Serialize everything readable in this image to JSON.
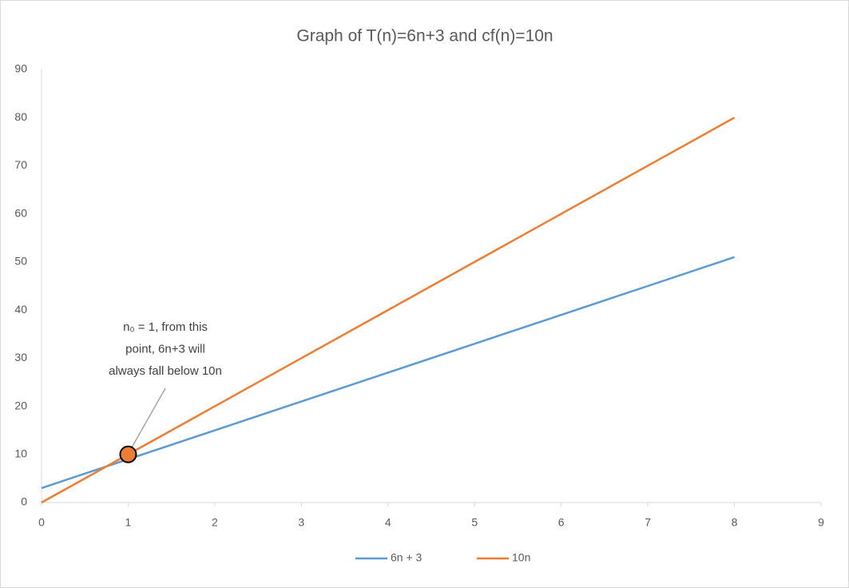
{
  "chart_data": {
    "type": "line",
    "title": "Graph of T(n)=6n+3 and cf(n)=10n",
    "x": [
      0,
      1,
      2,
      3,
      4,
      5,
      6,
      7,
      8
    ],
    "series": [
      {
        "name": "6n + 3",
        "color": "#5b9bd5",
        "values": [
          3,
          9,
          15,
          21,
          27,
          33,
          39,
          45,
          51
        ]
      },
      {
        "name": "10n",
        "color": "#ed7d31",
        "values": [
          0,
          10,
          20,
          30,
          40,
          50,
          60,
          70,
          80
        ]
      }
    ],
    "xlim": [
      0,
      9
    ],
    "xticks": [
      0,
      1,
      2,
      3,
      4,
      5,
      6,
      7,
      8,
      9
    ],
    "ylim": [
      0,
      90
    ],
    "yticks": [
      0,
      10,
      20,
      30,
      40,
      50,
      60,
      70,
      80,
      90
    ],
    "grid": false,
    "legend": "bottom",
    "annotation": {
      "lines": [
        "n₀ = 1, from this",
        "point, 6n+3 will",
        "always fall below 10n"
      ],
      "x": 1,
      "y": 10,
      "color": "#ed7d31"
    }
  }
}
